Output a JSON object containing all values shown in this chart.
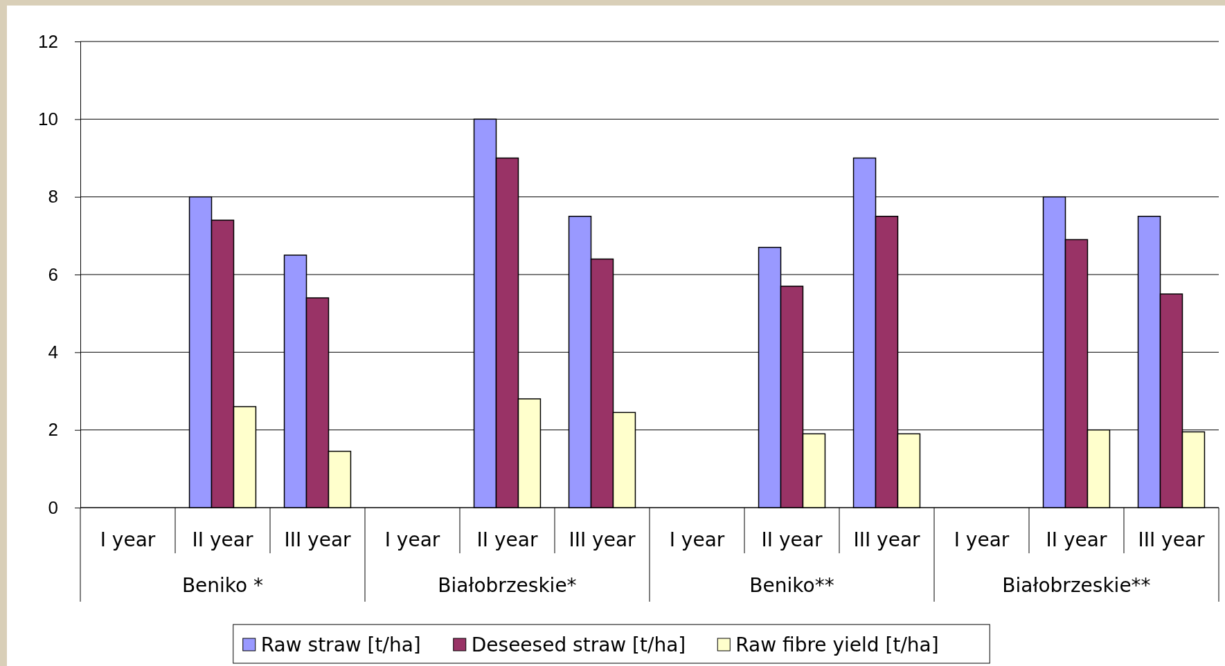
{
  "chart_data": {
    "type": "bar",
    "categories": [
      "I year",
      "II year",
      "III year",
      "I year",
      "II year",
      "III year",
      "I year",
      "II year",
      "III year",
      "I year",
      "II year",
      "III year"
    ],
    "annotations": [
      "Beniko *",
      "Białobrzeskie*",
      "Beniko**",
      "Białobrzeskie**"
    ],
    "series": [
      {
        "name": "Raw straw [t/ha]",
        "color": "#9999ff",
        "values": [
          null,
          8,
          6.5,
          null,
          10,
          7.5,
          null,
          6.7,
          9,
          null,
          8,
          7.5
        ]
      },
      {
        "name": "Deseesed straw [t/ha]",
        "color": "#993366",
        "values": [
          null,
          7.4,
          5.4,
          null,
          9,
          6.4,
          null,
          5.7,
          7.5,
          null,
          6.9,
          5.5
        ]
      },
      {
        "name": "Raw fibre yield [t/ha]",
        "color": "#ffffcc",
        "values": [
          null,
          2.6,
          1.45,
          null,
          2.8,
          2.45,
          null,
          1.9,
          1.9,
          null,
          2.0,
          1.95
        ]
      }
    ],
    "ylim": [
      0,
      12
    ],
    "yticks": [
      0,
      2,
      4,
      6,
      8,
      10,
      12
    ],
    "grid": "y",
    "legend": "bottom"
  }
}
